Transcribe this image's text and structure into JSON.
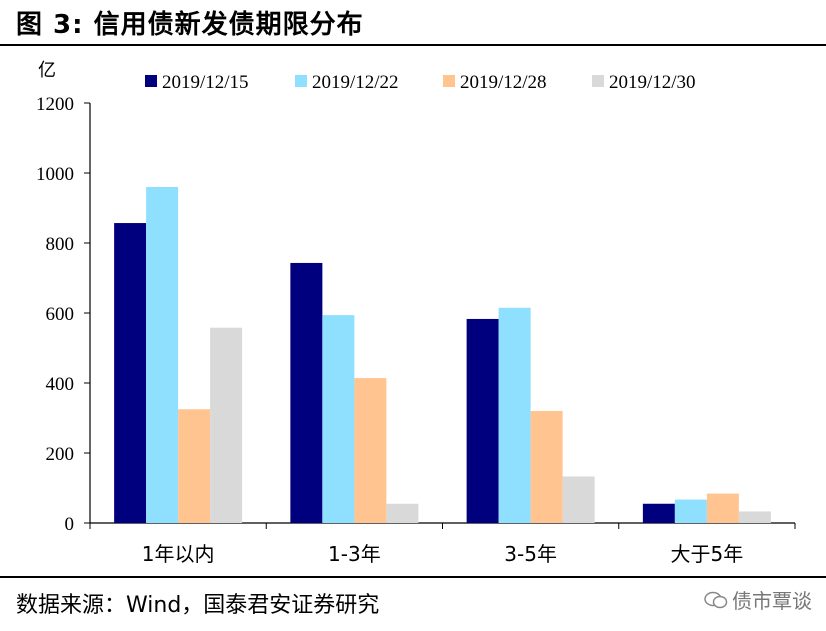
{
  "header": {
    "title": "图 3:  信用债新发债期限分布"
  },
  "footer": {
    "source": "数据来源：Wind，国泰君安证券研究"
  },
  "watermark": {
    "text": "债市覃谈",
    "icon": "wechat-icon"
  },
  "chart_data": {
    "type": "bar",
    "ylabel": "亿",
    "ylim": [
      0,
      1200
    ],
    "yticks": [
      "0",
      "200",
      "400",
      "600",
      "800",
      "1000",
      "1200"
    ],
    "grid": false,
    "legend_position": "top",
    "categories": [
      "1年以内",
      "1-3年",
      "3-5年",
      "大于5年"
    ],
    "series": [
      {
        "name": "2019/12/15",
        "color": "#00007F",
        "values": [
          857,
          743,
          583,
          55
        ]
      },
      {
        "name": "2019/12/22",
        "color": "#8FE0FF",
        "values": [
          960,
          594,
          615,
          67
        ]
      },
      {
        "name": "2019/12/28",
        "color": "#FFC48F",
        "values": [
          325,
          414,
          320,
          84
        ]
      },
      {
        "name": "2019/12/30",
        "color": "#D9D9D9",
        "values": [
          558,
          55,
          133,
          33
        ]
      }
    ]
  }
}
